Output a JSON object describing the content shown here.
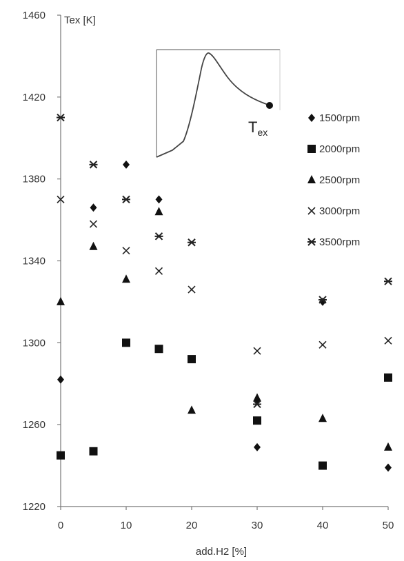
{
  "chart_data": {
    "type": "scatter",
    "xlabel": "add.H2 [%]",
    "ylabel": "Tex [K]",
    "xlim": [
      0,
      50
    ],
    "ylim": [
      1220,
      1460
    ],
    "x_ticks": [
      "0",
      "10",
      "20",
      "30",
      "40",
      "50"
    ],
    "y_ticks": [
      "1220",
      "1260",
      "1300",
      "1340",
      "1380",
      "1420",
      "1460"
    ],
    "grid": false,
    "legend_position": "right",
    "inset": {
      "label_main": "T",
      "label_sub": "ex"
    },
    "series": [
      {
        "name": "1500rpm",
        "marker": "diamond",
        "points": [
          [
            0,
            1282
          ],
          [
            5,
            1366
          ],
          [
            10,
            1387
          ],
          [
            15,
            1370
          ],
          [
            30,
            1272
          ],
          [
            30,
            1249
          ],
          [
            40,
            1320
          ],
          [
            50,
            1239
          ]
        ]
      },
      {
        "name": "2000rpm",
        "marker": "square",
        "points": [
          [
            0,
            1245
          ],
          [
            5,
            1247
          ],
          [
            10,
            1300
          ],
          [
            15,
            1297
          ],
          [
            20,
            1292
          ],
          [
            30,
            1262
          ],
          [
            40,
            1240
          ],
          [
            50,
            1283
          ]
        ]
      },
      {
        "name": "2500rpm",
        "marker": "triangle",
        "points": [
          [
            0,
            1320
          ],
          [
            5,
            1347
          ],
          [
            10,
            1331
          ],
          [
            15,
            1364
          ],
          [
            20,
            1267
          ],
          [
            30,
            1273
          ],
          [
            40,
            1263
          ],
          [
            50,
            1249
          ]
        ]
      },
      {
        "name": "3000rpm",
        "marker": "x",
        "points": [
          [
            0,
            1370
          ],
          [
            5,
            1358
          ],
          [
            10,
            1345
          ],
          [
            15,
            1335
          ],
          [
            20,
            1326
          ],
          [
            30,
            1296
          ],
          [
            40,
            1299
          ],
          [
            50,
            1301
          ]
        ]
      },
      {
        "name": "3500rpm",
        "marker": "xbar",
        "points": [
          [
            0,
            1410
          ],
          [
            5,
            1387
          ],
          [
            10,
            1370
          ],
          [
            15,
            1352
          ],
          [
            20,
            1349
          ],
          [
            30,
            1270
          ],
          [
            40,
            1321
          ],
          [
            50,
            1330
          ]
        ]
      }
    ]
  }
}
